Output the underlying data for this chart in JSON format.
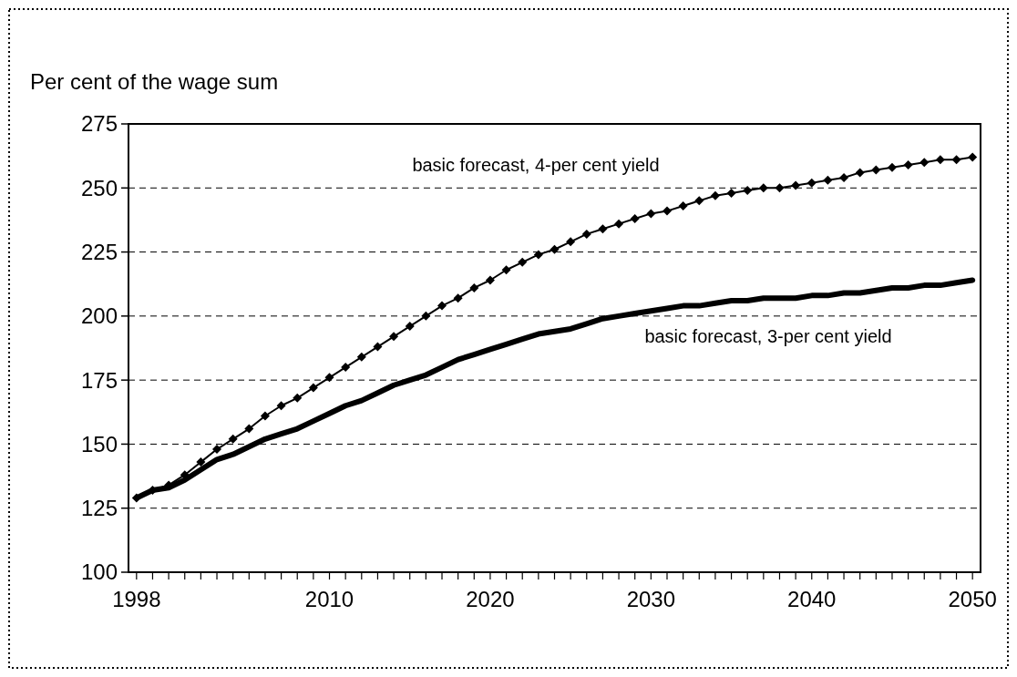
{
  "chart_data": {
    "type": "line",
    "ylabel": "Per cent of the wage sum",
    "x": [
      1998,
      1999,
      2000,
      2001,
      2002,
      2003,
      2004,
      2005,
      2006,
      2007,
      2008,
      2009,
      2010,
      2011,
      2012,
      2013,
      2014,
      2015,
      2016,
      2017,
      2018,
      2019,
      2020,
      2021,
      2022,
      2023,
      2024,
      2025,
      2026,
      2027,
      2028,
      2029,
      2030,
      2031,
      2032,
      2033,
      2034,
      2035,
      2036,
      2037,
      2038,
      2039,
      2040,
      2041,
      2042,
      2043,
      2044,
      2045,
      2046,
      2047,
      2048,
      2049,
      2050
    ],
    "xlim": [
      1997.5,
      2050.5
    ],
    "xticks": [
      1998,
      {
        "value": 1999,
        "label": null
      },
      {
        "value": 2000,
        "label": null
      },
      {
        "value": 2001,
        "label": null
      },
      {
        "value": 2002,
        "label": null
      },
      {
        "value": 2003,
        "label": null
      },
      {
        "value": 2004,
        "label": null
      },
      {
        "value": 2005,
        "label": null
      },
      {
        "value": 2006,
        "label": null
      },
      {
        "value": 2007,
        "label": null
      },
      {
        "value": 2008,
        "label": null
      },
      {
        "value": 2009,
        "label": null
      },
      2010,
      {
        "value": 2011,
        "label": null
      },
      {
        "value": 2012,
        "label": null
      },
      {
        "value": 2013,
        "label": null
      },
      {
        "value": 2014,
        "label": null
      },
      {
        "value": 2015,
        "label": null
      },
      {
        "value": 2016,
        "label": null
      },
      {
        "value": 2017,
        "label": null
      },
      {
        "value": 2018,
        "label": null
      },
      {
        "value": 2019,
        "label": null
      },
      2020,
      {
        "value": 2021,
        "label": null
      },
      {
        "value": 2022,
        "label": null
      },
      {
        "value": 2023,
        "label": null
      },
      {
        "value": 2024,
        "label": null
      },
      {
        "value": 2025,
        "label": null
      },
      {
        "value": 2026,
        "label": null
      },
      {
        "value": 2027,
        "label": null
      },
      {
        "value": 2028,
        "label": null
      },
      {
        "value": 2029,
        "label": null
      },
      2030,
      {
        "value": 2031,
        "label": null
      },
      {
        "value": 2032,
        "label": null
      },
      {
        "value": 2033,
        "label": null
      },
      {
        "value": 2034,
        "label": null
      },
      {
        "value": 2035,
        "label": null
      },
      {
        "value": 2036,
        "label": null
      },
      {
        "value": 2037,
        "label": null
      },
      {
        "value": 2038,
        "label": null
      },
      {
        "value": 2039,
        "label": null
      },
      2040,
      {
        "value": 2041,
        "label": null
      },
      {
        "value": 2042,
        "label": null
      },
      {
        "value": 2043,
        "label": null
      },
      {
        "value": 2044,
        "label": null
      },
      {
        "value": 2045,
        "label": null
      },
      {
        "value": 2046,
        "label": null
      },
      {
        "value": 2047,
        "label": null
      },
      {
        "value": 2048,
        "label": null
      },
      {
        "value": 2049,
        "label": null
      },
      2050
    ],
    "ylim": [
      100,
      275
    ],
    "yticks": [
      100,
      125,
      150,
      175,
      200,
      225,
      250,
      275
    ],
    "grid": "y",
    "legend": false,
    "series": [
      {
        "name": "basic forecast, 4-per cent yield",
        "color": "#000000",
        "marker": "diamond",
        "values": [
          129,
          132,
          134,
          138,
          143,
          148,
          152,
          156,
          161,
          165,
          168,
          172,
          176,
          180,
          184,
          188,
          192,
          196,
          200,
          204,
          207,
          211,
          214,
          218,
          221,
          224,
          226,
          229,
          232,
          234,
          236,
          238,
          240,
          241,
          243,
          245,
          247,
          248,
          249,
          250,
          250,
          251,
          252,
          253,
          254,
          256,
          257,
          258,
          259,
          260,
          261,
          261,
          262
        ]
      },
      {
        "name": "basic forecast, 3-per cent yield",
        "color": "#000000",
        "marker": "none",
        "values": [
          129,
          132,
          133,
          136,
          140,
          144,
          146,
          149,
          152,
          154,
          156,
          159,
          162,
          165,
          167,
          170,
          173,
          175,
          177,
          180,
          183,
          185,
          187,
          189,
          191,
          193,
          194,
          195,
          197,
          199,
          200,
          201,
          202,
          203,
          204,
          204,
          205,
          206,
          206,
          207,
          207,
          207,
          208,
          208,
          209,
          209,
          210,
          211,
          211,
          212,
          212,
          213,
          214
        ]
      }
    ]
  }
}
